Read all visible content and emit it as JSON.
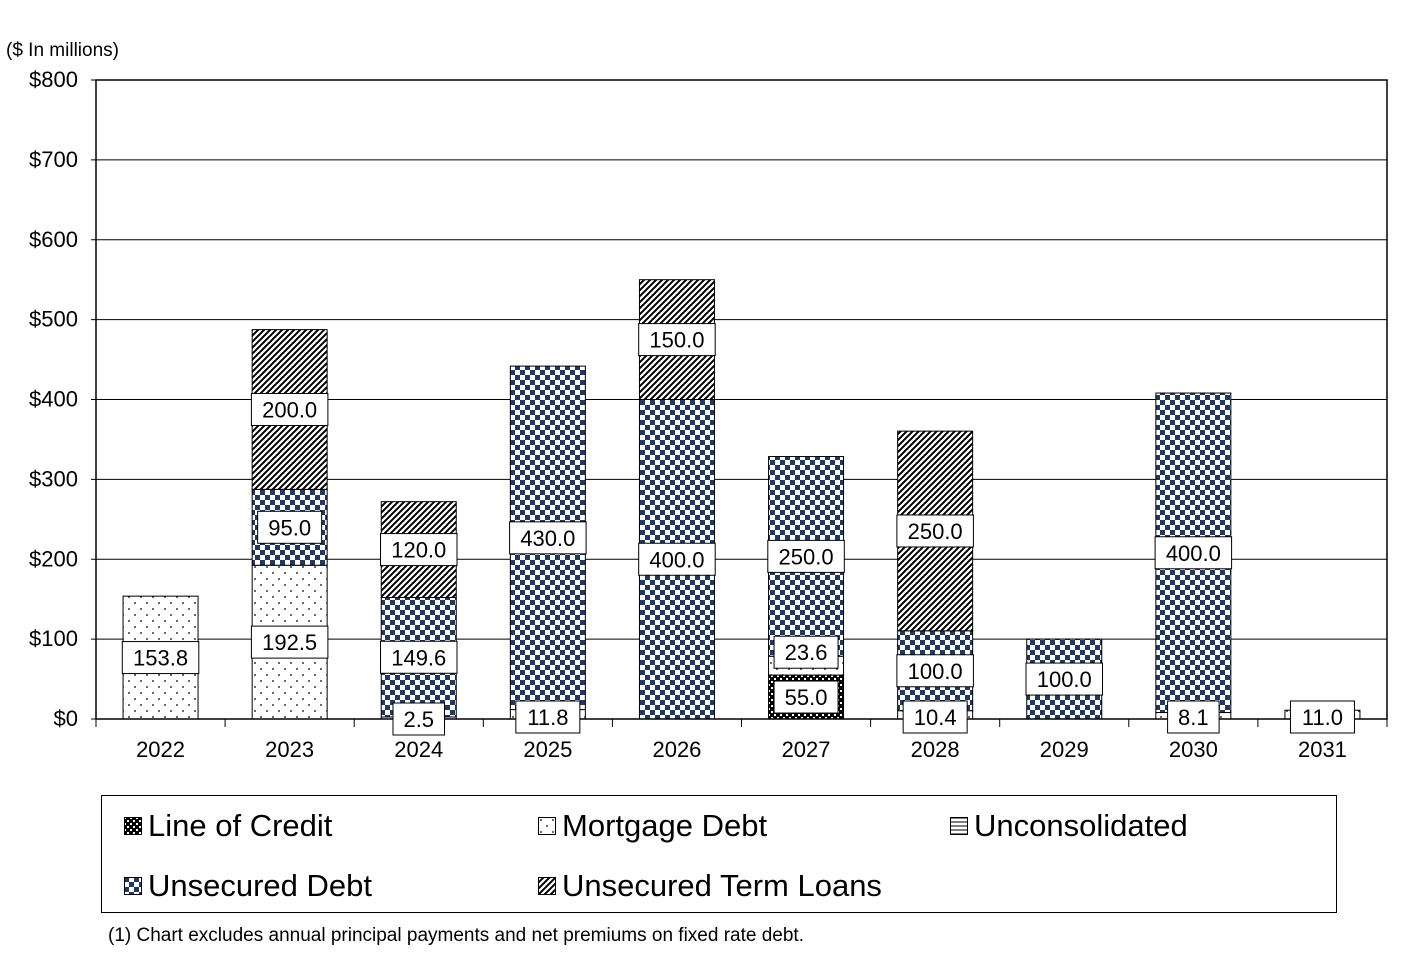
{
  "units_note": "($ In millions)",
  "footnote": "(1) Chart excludes annual principal payments and net premiums on fixed rate debt.",
  "chart_data": {
    "type": "bar",
    "stacked": true,
    "title": "",
    "xlabel": "",
    "ylabel": "",
    "ylim": [
      0,
      800
    ],
    "ytick_values": [
      0,
      100,
      200,
      300,
      400,
      500,
      600,
      700,
      800
    ],
    "ytick_labels": [
      "$0",
      "$100",
      "$200",
      "$300",
      "$400",
      "$500",
      "$600",
      "$700",
      "$800"
    ],
    "grid": true,
    "legend_position": "bottom",
    "categories": [
      "2022",
      "2023",
      "2024",
      "2025",
      "2026",
      "2027",
      "2028",
      "2029",
      "2030",
      "2031"
    ],
    "series": [
      {
        "name": "Line of Credit",
        "pattern": "solid-check",
        "values": [
          0,
          0,
          0,
          0,
          0,
          55.0,
          0,
          0,
          0,
          0
        ]
      },
      {
        "name": "Mortgage Debt",
        "pattern": "dots",
        "values": [
          153.8,
          192.5,
          0,
          11.8,
          0,
          23.6,
          10.4,
          0,
          8.1,
          11.0
        ]
      },
      {
        "name": "Unconsolidated",
        "pattern": "horizontal",
        "values": [
          0,
          0,
          2.5,
          0,
          0,
          0,
          0,
          0,
          0,
          0
        ]
      },
      {
        "name": "Unsecured Debt",
        "pattern": "checker",
        "values": [
          0,
          95.0,
          149.6,
          430.0,
          400.0,
          250.0,
          100.0,
          100.0,
          400.0,
          0
        ]
      },
      {
        "name": "Unsecured Term Loans",
        "pattern": "diagonal",
        "values": [
          0,
          200.0,
          120.0,
          0,
          150.0,
          0,
          250.0,
          0,
          0,
          0
        ]
      }
    ],
    "data_labels": [
      {
        "category": "2022",
        "series": "Mortgage Debt",
        "text": "153.8"
      },
      {
        "category": "2023",
        "series": "Mortgage Debt",
        "text": "192.5"
      },
      {
        "category": "2023",
        "series": "Unsecured Debt",
        "text": "95.0"
      },
      {
        "category": "2023",
        "series": "Unsecured Term Loans",
        "text": "200.0"
      },
      {
        "category": "2024",
        "series": "Unconsolidated",
        "text": "2.5"
      },
      {
        "category": "2024",
        "series": "Unsecured Debt",
        "text": "149.6"
      },
      {
        "category": "2024",
        "series": "Unsecured Term Loans",
        "text": "120.0"
      },
      {
        "category": "2025",
        "series": "Mortgage Debt",
        "text": "11.8"
      },
      {
        "category": "2025",
        "series": "Unsecured Debt",
        "text": "430.0"
      },
      {
        "category": "2026",
        "series": "Unsecured Debt",
        "text": "400.0"
      },
      {
        "category": "2026",
        "series": "Unsecured Term Loans",
        "text": "150.0"
      },
      {
        "category": "2027",
        "series": "Line of Credit",
        "text": "55.0"
      },
      {
        "category": "2027",
        "series": "Mortgage Debt",
        "text": "23.6"
      },
      {
        "category": "2027",
        "series": "Unsecured Debt",
        "text": "250.0"
      },
      {
        "category": "2028",
        "series": "Mortgage Debt",
        "text": "10.4"
      },
      {
        "category": "2028",
        "series": "Unsecured Debt",
        "text": "100.0"
      },
      {
        "category": "2028",
        "series": "Unsecured Term Loans",
        "text": "250.0"
      },
      {
        "category": "2029",
        "series": "Unsecured Debt",
        "text": "100.0"
      },
      {
        "category": "2030",
        "series": "Mortgage Debt",
        "text": "8.1"
      },
      {
        "category": "2030",
        "series": "Unsecured Debt",
        "text": "400.0"
      },
      {
        "category": "2031",
        "series": "Mortgage Debt",
        "text": "11.0"
      }
    ]
  },
  "legend": [
    {
      "label": "Line of Credit",
      "pattern": "solid-check"
    },
    {
      "label": "Mortgage Debt",
      "pattern": "dots"
    },
    {
      "label": "Unconsolidated",
      "pattern": "horizontal"
    },
    {
      "label": "Unsecured Debt",
      "pattern": "checker"
    },
    {
      "label": "Unsecured Term Loans",
      "pattern": "diagonal"
    }
  ],
  "colors": {
    "checker_dark": "#1f3864",
    "gridline": "#000000",
    "background": "#ffffff"
  }
}
